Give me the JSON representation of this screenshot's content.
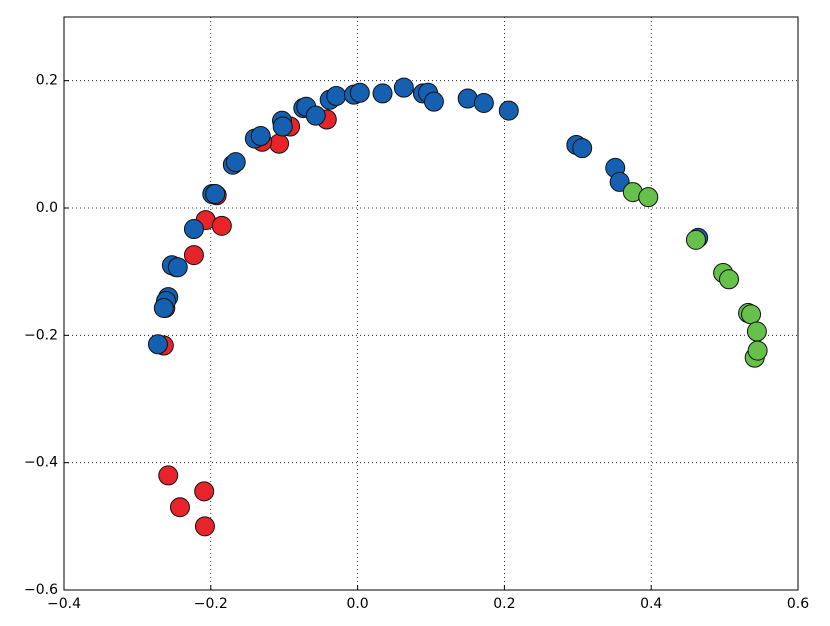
{
  "chart_data": {
    "type": "scatter",
    "xlim": [
      -0.4,
      0.6
    ],
    "ylim": [
      -0.6,
      0.3
    ],
    "xticks": [
      {
        "value": -0.4,
        "label": "−0.4"
      },
      {
        "value": -0.2,
        "label": "−0.2"
      },
      {
        "value": 0,
        "label": "0.0"
      },
      0.2,
      0.4,
      0.6
    ],
    "yticks": [
      {
        "value": -0.6,
        "label": "−0.6"
      },
      {
        "value": -0.4,
        "label": "−0.4"
      },
      {
        "value": -0.2,
        "label": "−0.2"
      },
      {
        "value": 0,
        "label": "0.0"
      },
      0.2
    ],
    "grid": true,
    "series": [
      {
        "color": "#e8242a",
        "x": [
          -0.258,
          -0.242,
          -0.208,
          -0.209,
          -0.264,
          -0.262,
          -0.247,
          -0.223,
          -0.207,
          -0.192,
          -0.185,
          -0.107,
          -0.092,
          -0.042,
          -0.13
        ],
        "values": [
          -0.42,
          -0.47,
          -0.5,
          -0.445,
          -0.216,
          -0.157,
          -0.093,
          -0.074,
          -0.019,
          0.02,
          -0.028,
          0.101,
          0.128,
          0.139,
          0.104
        ]
      },
      {
        "color": "#1560b0",
        "x": [
          -0.272,
          -0.258,
          -0.261,
          -0.264,
          -0.253,
          -0.245,
          -0.223,
          -0.198,
          -0.194,
          -0.17,
          -0.166,
          -0.14,
          -0.132,
          -0.103,
          -0.102,
          -0.074,
          -0.07,
          -0.057,
          -0.038,
          -0.029,
          -0.005,
          0.003,
          0.034,
          0.063,
          0.089,
          0.096,
          0.104,
          0.15,
          0.172,
          0.206,
          0.298,
          0.306,
          0.351,
          0.357,
          0.464
        ],
        "values": [
          -0.214,
          -0.14,
          -0.146,
          -0.157,
          -0.09,
          -0.093,
          -0.033,
          0.022,
          0.022,
          0.068,
          0.072,
          0.109,
          0.113,
          0.137,
          0.128,
          0.157,
          0.159,
          0.145,
          0.17,
          0.176,
          0.178,
          0.181,
          0.18,
          0.189,
          0.18,
          0.181,
          0.167,
          0.172,
          0.165,
          0.153,
          0.099,
          0.094,
          0.063,
          0.041,
          -0.047
        ]
      },
      {
        "color": "#66c14a",
        "x": [
          0.375,
          0.396,
          0.461,
          0.498,
          0.506,
          0.532,
          0.536,
          0.544,
          0.541,
          0.545
        ],
        "values": [
          0.025,
          0.017,
          -0.05,
          -0.102,
          -0.112,
          -0.165,
          -0.167,
          -0.194,
          -0.235,
          -0.224
        ]
      }
    ]
  }
}
